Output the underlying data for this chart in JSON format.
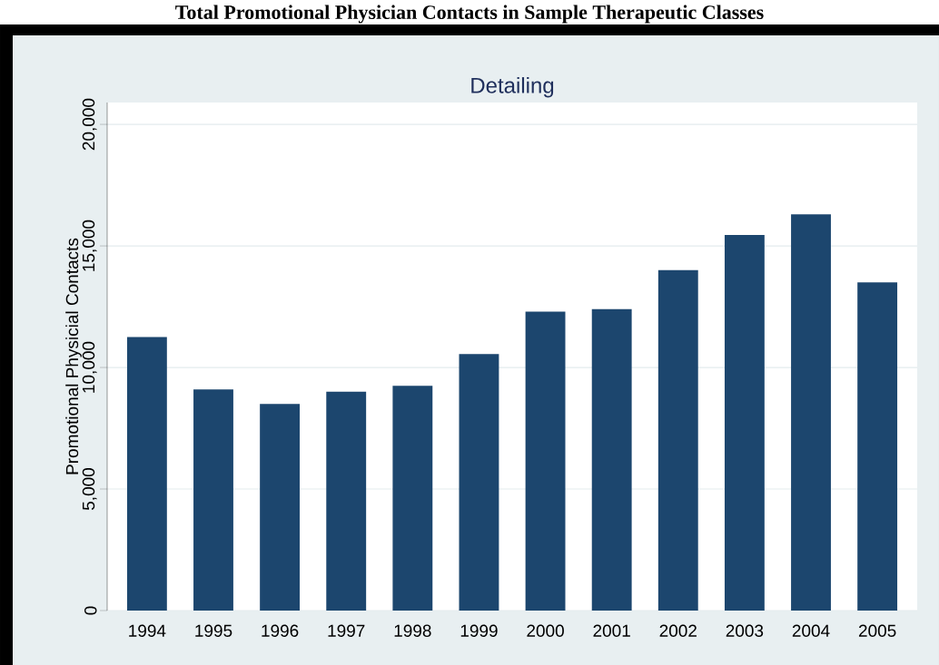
{
  "chart_data": {
    "type": "bar",
    "title": "Total Promotional Physician Contacts in Sample Therapeutic Classes",
    "subtitle": "Detailing",
    "ylabel": "Promotional Physicial Contacts",
    "categories": [
      "1994",
      "1995",
      "1996",
      "1997",
      "1998",
      "1999",
      "2000",
      "2001",
      "2002",
      "2003",
      "2004",
      "2005"
    ],
    "values": [
      11250,
      9100,
      8500,
      9000,
      9250,
      10550,
      12300,
      12400,
      14000,
      15450,
      16300,
      13500
    ],
    "color": "#1c466e",
    "ylim": [
      0,
      20900
    ],
    "yticks": [
      {
        "value": 0,
        "label": "0"
      },
      {
        "value": 5000,
        "label": "5,000"
      },
      {
        "value": 10000,
        "label": "10,000"
      },
      {
        "value": 15000,
        "label": "15,000"
      },
      {
        "value": 20000,
        "label": "20,000"
      }
    ],
    "grid": "y"
  }
}
